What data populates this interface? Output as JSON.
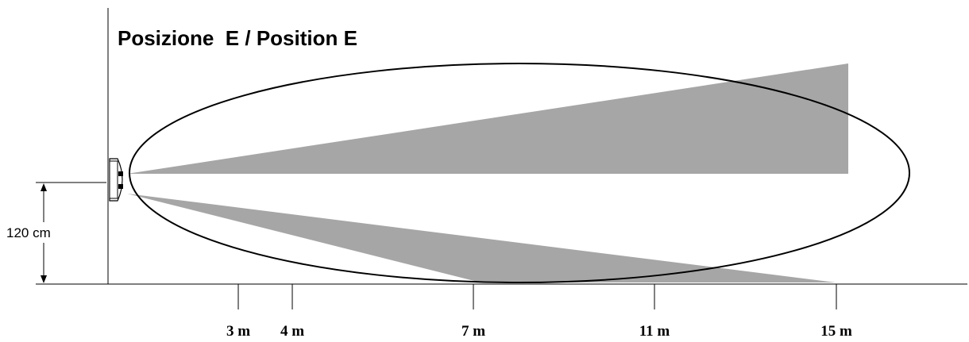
{
  "title": "Posizione  E / Position E",
  "height": {
    "label": "120 cm",
    "value_cm": 120
  },
  "distances": [
    {
      "label": "3 m",
      "value_m": 3
    },
    {
      "label": "4 m",
      "value_m": 4
    },
    {
      "label": "7 m",
      "value_m": 7
    },
    {
      "label": "11 m",
      "value_m": 11
    },
    {
      "label": "15  m",
      "value_m": 15
    }
  ],
  "colors": {
    "beam": "#a6a6a6",
    "line": "#000000",
    "background": "#ffffff"
  }
}
